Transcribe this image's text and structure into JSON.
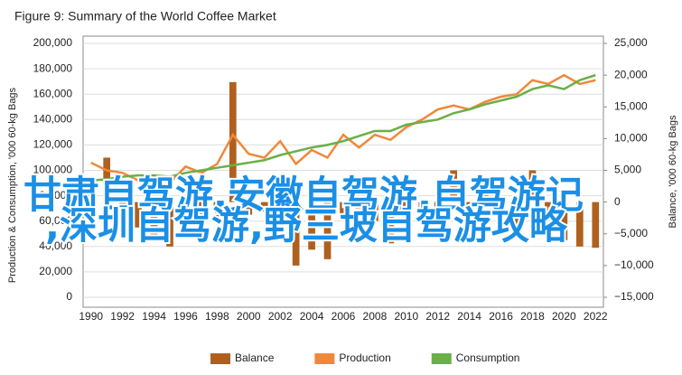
{
  "chart_data": {
    "type": "combo",
    "title": "Figure 9: Summary of the World Coffee Market",
    "y_label": "Production & Consumption, '000 60-kg Bags",
    "y2_label": "Balance, '000 60-kg Bags",
    "x": [
      1990,
      1991,
      1992,
      1993,
      1994,
      1995,
      1996,
      1997,
      1998,
      1999,
      2000,
      2001,
      2002,
      2003,
      2004,
      2005,
      2006,
      2007,
      2008,
      2009,
      2010,
      2011,
      2012,
      2013,
      2014,
      2015,
      2016,
      2017,
      2018,
      2019,
      2020,
      2021,
      2022
    ],
    "xticks": [
      1990,
      1992,
      1994,
      1996,
      1998,
      2000,
      2002,
      2004,
      2006,
      2008,
      2010,
      2012,
      2014,
      2016,
      2018,
      2020,
      2022
    ],
    "ylim": [
      0,
      200000
    ],
    "yticks": [
      0,
      {
        "value": 20000,
        "label": "20,000"
      },
      {
        "value": 40000,
        "label": "40,000"
      },
      {
        "value": 60000,
        "label": "60,000"
      },
      {
        "value": 80000,
        "label": "80,000"
      },
      {
        "value": 100000,
        "label": "100,000"
      },
      {
        "value": 120000,
        "label": "120,000"
      },
      {
        "value": 140000,
        "label": "140,000"
      },
      {
        "value": 160000,
        "label": "160,000"
      },
      {
        "value": 180000,
        "label": "180,000"
      },
      {
        "value": 200000,
        "label": "200,000"
      }
    ],
    "y2lim": [
      -15000,
      25000
    ],
    "y2ticks": [
      {
        "value": -15000,
        "label": "−15,000"
      },
      {
        "value": -10000,
        "label": "−10,000"
      },
      {
        "value": -5000,
        "label": "−5,000"
      },
      0,
      {
        "value": 5000,
        "label": "5,000"
      },
      {
        "value": 10000,
        "label": "10,000"
      },
      {
        "value": 15000,
        "label": "15,000"
      },
      {
        "value": 20000,
        "label": "20,000"
      },
      {
        "value": 25000,
        "label": "25,000"
      }
    ],
    "grid": true,
    "legend": "bottom",
    "series": [
      {
        "name": "Balance",
        "type": "bar",
        "axis": "y2",
        "color": "#b0601e",
        "values": [
          3000,
          7000,
          -2000,
          -4000,
          -6000,
          -7000,
          1000,
          -2000,
          -3000,
          18900,
          -2000,
          -1500,
          2000,
          -10000,
          -7500,
          -9000,
          -2500,
          -1000,
          -3000,
          -6500,
          -2000,
          -3000,
          -1500,
          5000,
          -3000,
          4000,
          -1000,
          -5000,
          5000,
          -2000,
          -6000,
          -7000,
          -7200
        ]
      },
      {
        "name": "Production",
        "type": "line",
        "color": "#f0883a",
        "values": [
          106000,
          100000,
          98000,
          92000,
          94000,
          90000,
          103000,
          98000,
          105000,
          128000,
          113000,
          110000,
          123000,
          105000,
          116000,
          110000,
          128000,
          118000,
          128000,
          124000,
          134000,
          140000,
          148000,
          151000,
          148000,
          154000,
          158000,
          160000,
          171000,
          168000,
          175000,
          168000,
          171000
        ]
      },
      {
        "name": "Consumption",
        "type": "line",
        "color": "#6aaf47",
        "values": [
          92000,
          93000,
          95000,
          96000,
          96000,
          95000,
          98000,
          100000,
          102000,
          104000,
          106000,
          108000,
          112000,
          115000,
          118000,
          120000,
          123000,
          127000,
          131000,
          131000,
          136000,
          138000,
          140000,
          145000,
          148000,
          152000,
          155000,
          158000,
          164000,
          167000,
          164000,
          171000,
          175000
        ]
      }
    ]
  },
  "watermark": [
    "甘肃自驾游,安徽自驾游,自驾游记",
    ",深圳自驾游,野三坡自驾游攻略"
  ]
}
